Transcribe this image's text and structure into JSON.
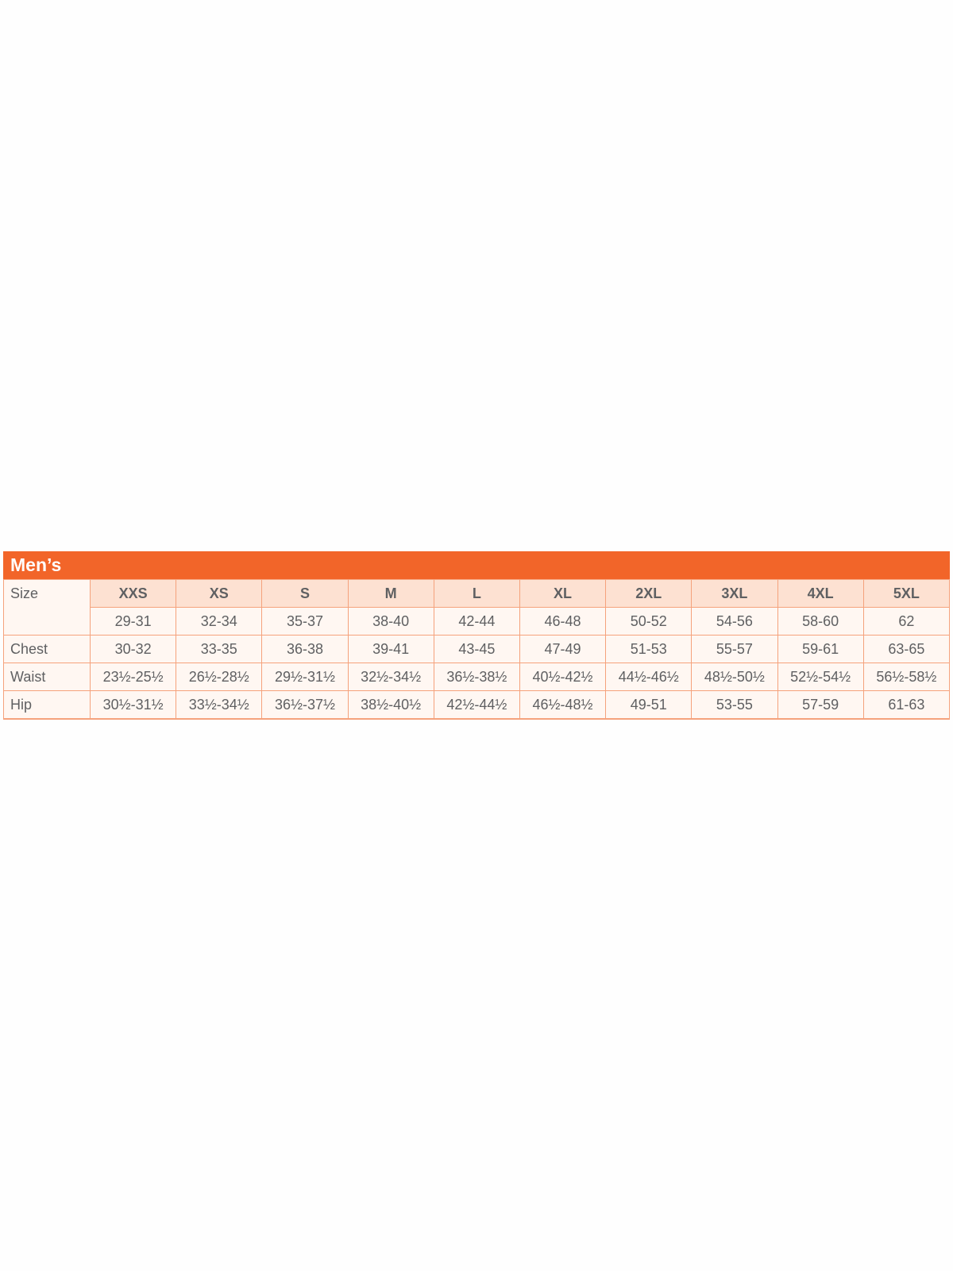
{
  "title": "Men’s",
  "colors": {
    "header": "#f26529",
    "border": "#f5a27c",
    "size_header_bg": "#fde1d2",
    "cell_bg": "#fff7f2",
    "text": "#5f6062"
  },
  "sizes": [
    "XXS",
    "XS",
    "S",
    "M",
    "L",
    "XL",
    "2XL",
    "3XL",
    "4XL",
    "5XL"
  ],
  "rows": [
    {
      "label": "Size",
      "values": [
        "29-31",
        "32-34",
        "35-37",
        "38-40",
        "42-44",
        "46-48",
        "50-52",
        "54-56",
        "58-60",
        "62"
      ]
    },
    {
      "label": "Chest",
      "values": [
        "30-32",
        "33-35",
        "36-38",
        "39-41",
        "43-45",
        "47-49",
        "51-53",
        "55-57",
        "59-61",
        "63-65"
      ]
    },
    {
      "label": "Waist",
      "values": [
        "23½-25½",
        "26½-28½",
        "29½-31½",
        "32½-34½",
        "36½-38½",
        "40½-42½",
        "44½-46½",
        "48½-50½",
        "52½-54½",
        "56½-58½"
      ]
    },
    {
      "label": "Hip",
      "values": [
        "30½-31½",
        "33½-34½",
        "36½-37½",
        "38½-40½",
        "42½-44½",
        "46½-48½",
        "49-51",
        "53-55",
        "57-59",
        "61-63"
      ]
    }
  ]
}
